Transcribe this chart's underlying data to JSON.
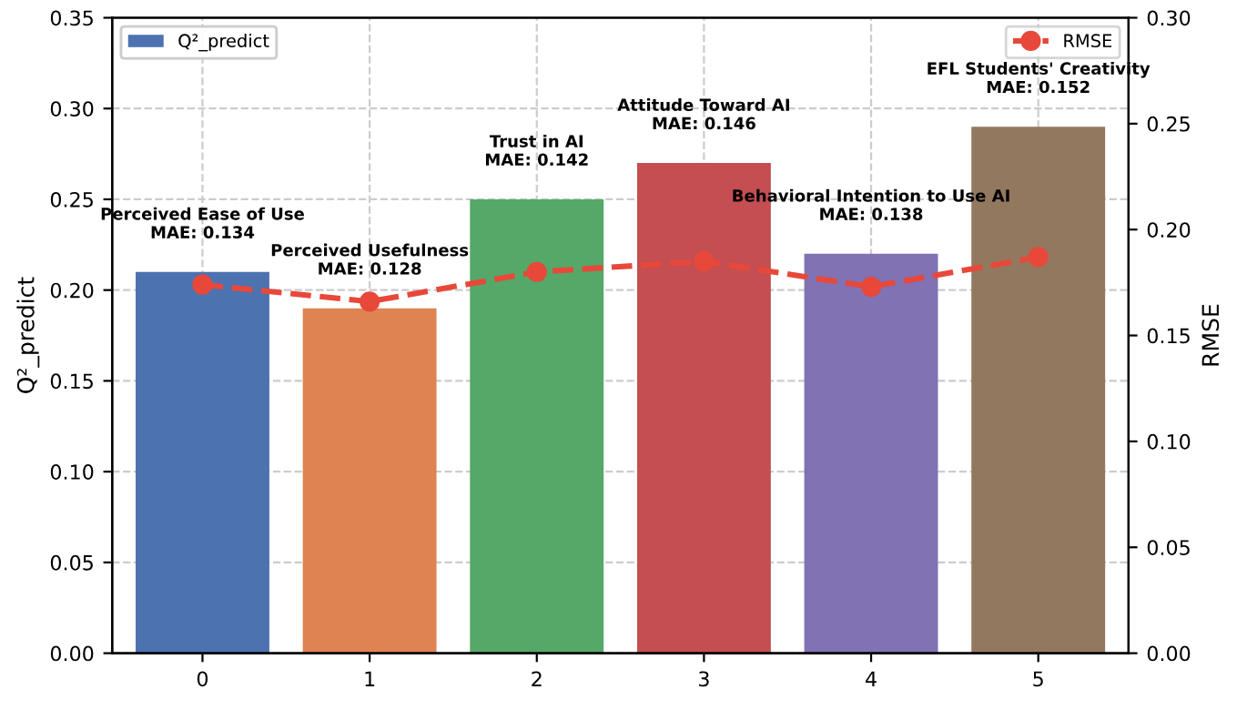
{
  "chart_data": {
    "type": "bar",
    "ylabel": "Q²_predict",
    "y2label": "RMSE",
    "x": [
      0,
      1,
      2,
      3,
      4,
      5
    ],
    "xlim": [
      -0.54,
      5.54
    ],
    "xticks": [
      0,
      1,
      2,
      3,
      4,
      5
    ],
    "ylim": [
      0,
      0.35
    ],
    "yticks": [
      {
        "value": 0,
        "label": "0.00"
      },
      0.05,
      {
        "value": 0.1,
        "label": "0.10"
      },
      0.15,
      {
        "value": 0.2,
        "label": "0.20"
      },
      0.25,
      {
        "value": 0.3,
        "label": "0.30"
      },
      0.35
    ],
    "y2lim": [
      0,
      0.3
    ],
    "y2ticks": [
      {
        "value": 0,
        "label": "0.00"
      },
      0.05,
      {
        "value": 0.1,
        "label": "0.10"
      },
      0.15,
      {
        "value": 0.2,
        "label": "0.20"
      },
      0.25,
      {
        "value": 0.3,
        "label": "0.30"
      }
    ],
    "grid": true,
    "legend": "top",
    "series": [
      {
        "name": "Q²_predict",
        "colors": [
          "#4c72b0",
          "#dd8452",
          "#55a868",
          "#c44e52",
          "#8172b3",
          "#937860"
        ],
        "values": [
          0.21,
          0.19,
          0.25,
          0.27,
          0.22,
          0.29
        ]
      },
      {
        "name": "RMSE",
        "type": "line",
        "axis": "y2",
        "color": "#e8483a",
        "marker": "circle",
        "line_style": "dashed",
        "values": [
          0.174,
          0.166,
          0.18,
          0.185,
          0.173,
          0.187
        ]
      }
    ],
    "annotations": [
      {
        "text": "Perceived Ease of Use\nMAE: 0.134",
        "x": 0,
        "y": 0.21
      },
      {
        "text": "Perceived Usefulness\nMAE: 0.128",
        "x": 1,
        "y": 0.19
      },
      {
        "text": "Trust in AI\nMAE: 0.142",
        "x": 2,
        "y": 0.25
      },
      {
        "text": "Attitude Toward AI\nMAE: 0.146",
        "x": 3,
        "y": 0.27
      },
      {
        "text": "Behavioral Intention to Use AI\nMAE: 0.138",
        "x": 4,
        "y": 0.22
      },
      {
        "text": "EFL Students' Creativity\nMAE: 0.152",
        "x": 5,
        "y": 0.29
      }
    ]
  }
}
